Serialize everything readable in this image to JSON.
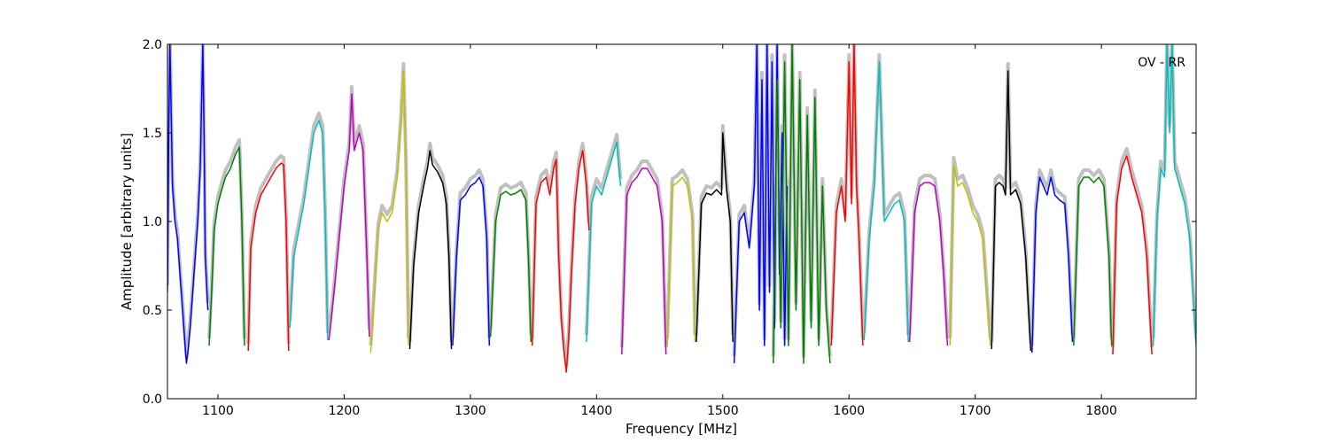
{
  "chart_data": {
    "type": "line",
    "annotation": "OV - RR",
    "xlabel": "Frequency [MHz]",
    "ylabel": "Amplitude [arbitrary units]",
    "xlim": [
      1060,
      1875
    ],
    "ylim": [
      0.0,
      2.0
    ],
    "x_ticks": [
      1100,
      1200,
      1300,
      1400,
      1500,
      1600,
      1700,
      1800
    ],
    "x_tick_labels": [
      "1100",
      "1200",
      "1300",
      "1400",
      "1500",
      "1600",
      "1700",
      "1800"
    ],
    "y_ticks": [
      0.0,
      0.5,
      1.0,
      1.5,
      2.0
    ],
    "y_tick_labels": [
      "0.0",
      "0.5",
      "1.0",
      "1.5",
      "2.0"
    ],
    "grid": false,
    "background_color": "#c0c0c0",
    "series": [
      {
        "color": "#0000ff",
        "x": [
          1060,
          1061,
          1062,
          1064,
          1066,
          1068,
          1070,
          1072,
          1074,
          1075,
          1076,
          1078,
          1080,
          1082,
          1084,
          1086,
          1088,
          1089,
          1090,
          1092
        ],
        "y": [
          0.6,
          1.5,
          2.0,
          1.2,
          1.0,
          0.9,
          0.7,
          0.5,
          0.3,
          0.2,
          0.25,
          0.4,
          0.6,
          0.8,
          1.0,
          1.3,
          2.0,
          1.5,
          0.8,
          0.5
        ]
      },
      {
        "color": "#008000",
        "x": [
          1093,
          1095,
          1097,
          1100,
          1103,
          1106,
          1110,
          1114,
          1117,
          1119,
          1121
        ],
        "y": [
          0.3,
          0.6,
          0.95,
          1.1,
          1.18,
          1.25,
          1.3,
          1.38,
          1.42,
          1.0,
          0.3
        ]
      },
      {
        "color": "#ff0000",
        "x": [
          1124,
          1126,
          1130,
          1134,
          1138,
          1142,
          1146,
          1150,
          1152,
          1154,
          1156
        ],
        "y": [
          0.27,
          0.85,
          1.05,
          1.15,
          1.2,
          1.25,
          1.3,
          1.33,
          1.32,
          1.0,
          0.27
        ]
      },
      {
        "color": "#00bfbf",
        "x": [
          1157,
          1160,
          1164,
          1168,
          1172,
          1176,
          1180,
          1183,
          1185,
          1187
        ],
        "y": [
          0.4,
          0.8,
          0.95,
          1.1,
          1.3,
          1.5,
          1.57,
          1.5,
          1.0,
          0.33
        ]
      },
      {
        "color": "#bf00bf",
        "x": [
          1188,
          1192,
          1196,
          1200,
          1204,
          1206,
          1208,
          1212,
          1215,
          1218,
          1220
        ],
        "y": [
          0.33,
          0.6,
          0.9,
          1.2,
          1.4,
          1.72,
          1.4,
          1.5,
          1.4,
          0.8,
          0.35
        ]
      },
      {
        "color": "#bfbf00",
        "x": [
          1221,
          1224,
          1227,
          1230,
          1234,
          1238,
          1242,
          1245,
          1247,
          1249,
          1251
        ],
        "y": [
          0.26,
          0.6,
          0.95,
          1.05,
          1.0,
          1.05,
          1.25,
          1.55,
          1.85,
          1.3,
          0.3
        ]
      },
      {
        "color": "#000000",
        "x": [
          1252,
          1255,
          1259,
          1263,
          1266,
          1268,
          1270,
          1274,
          1278,
          1281,
          1283,
          1285
        ],
        "y": [
          0.28,
          0.75,
          1.05,
          1.2,
          1.3,
          1.4,
          1.32,
          1.28,
          1.22,
          1.1,
          0.8,
          0.28
        ]
      },
      {
        "color": "#0000ff",
        "x": [
          1286,
          1289,
          1292,
          1296,
          1300,
          1304,
          1307,
          1310,
          1313,
          1315
        ],
        "y": [
          0.3,
          0.8,
          1.12,
          1.15,
          1.2,
          1.22,
          1.25,
          1.2,
          0.9,
          0.3
        ]
      },
      {
        "color": "#008000",
        "x": [
          1316,
          1320,
          1324,
          1328,
          1332,
          1336,
          1340,
          1344,
          1346,
          1348
        ],
        "y": [
          0.35,
          1.0,
          1.15,
          1.17,
          1.15,
          1.16,
          1.18,
          1.12,
          0.8,
          0.32
        ]
      },
      {
        "color": "#ff0000",
        "x": [
          1349,
          1352,
          1356,
          1360,
          1363,
          1366,
          1368,
          1370,
          1372,
          1374,
          1376,
          1378,
          1380,
          1383,
          1386,
          1389,
          1392,
          1394
        ],
        "y": [
          0.3,
          1.1,
          1.22,
          1.25,
          1.15,
          1.3,
          1.35,
          0.8,
          0.45,
          0.28,
          0.15,
          0.35,
          0.7,
          1.1,
          1.3,
          1.4,
          1.2,
          0.95
        ]
      },
      {
        "color": "#00bfbf",
        "x": [
          1392,
          1396,
          1400,
          1404,
          1408,
          1412,
          1416,
          1419
        ],
        "y": [
          0.32,
          1.1,
          1.2,
          1.15,
          1.25,
          1.35,
          1.45,
          1.2
        ]
      },
      {
        "color": "#bf00bf",
        "x": [
          1420,
          1424,
          1428,
          1432,
          1436,
          1440,
          1444,
          1448,
          1452,
          1455
        ],
        "y": [
          0.25,
          1.15,
          1.22,
          1.25,
          1.3,
          1.3,
          1.25,
          1.2,
          1.0,
          0.25
        ]
      },
      {
        "color": "#bfbf00",
        "x": [
          1456,
          1460,
          1464,
          1468,
          1472,
          1476,
          1478
        ],
        "y": [
          0.3,
          1.2,
          1.22,
          1.25,
          1.2,
          1.0,
          0.32
        ]
      },
      {
        "color": "#000000",
        "x": [
          1479,
          1483,
          1487,
          1491,
          1495,
          1499,
          1500,
          1503,
          1506,
          1508
        ],
        "y": [
          0.32,
          1.1,
          1.16,
          1.15,
          1.18,
          1.15,
          1.5,
          1.18,
          1.0,
          0.32
        ]
      },
      {
        "color": "#0000ff",
        "x": [
          1509,
          1513,
          1517,
          1521,
          1525,
          1527,
          1529,
          1531,
          1533,
          1535,
          1537,
          1539,
          1541,
          1543,
          1545,
          1547,
          1549,
          1551
        ],
        "y": [
          0.2,
          1.0,
          1.05,
          0.85,
          1.2,
          2.0,
          0.5,
          1.8,
          0.3,
          2.0,
          0.6,
          1.9,
          0.4,
          2.0,
          0.7,
          1.5,
          0.3,
          1.2
        ]
      },
      {
        "color": "#008000",
        "x": [
          1540,
          1543,
          1546,
          1549,
          1552,
          1555,
          1558,
          1561,
          1564,
          1567,
          1570,
          1573,
          1576,
          1579,
          1582,
          1585
        ],
        "y": [
          0.2,
          1.8,
          0.4,
          1.9,
          0.3,
          2.0,
          0.5,
          1.8,
          0.2,
          1.6,
          0.4,
          1.7,
          0.3,
          1.2,
          0.5,
          0.2
        ]
      },
      {
        "color": "#ff0000",
        "x": [
          1586,
          1590,
          1594,
          1597,
          1600,
          1602,
          1604,
          1606,
          1608,
          1611
        ],
        "y": [
          0.3,
          1.05,
          1.2,
          1.0,
          1.9,
          1.1,
          2.0,
          1.2,
          0.9,
          0.3
        ]
      },
      {
        "color": "#00bfbf",
        "x": [
          1612,
          1616,
          1620,
          1624,
          1628,
          1632,
          1636,
          1640,
          1644,
          1647
        ],
        "y": [
          0.33,
          0.9,
          1.2,
          1.9,
          1.0,
          1.05,
          1.1,
          1.12,
          1.0,
          0.32
        ]
      },
      {
        "color": "#bf00bf",
        "x": [
          1648,
          1652,
          1656,
          1660,
          1664,
          1668,
          1672,
          1675,
          1678
        ],
        "y": [
          0.32,
          1.05,
          1.2,
          1.22,
          1.22,
          1.2,
          1.0,
          0.7,
          0.3
        ]
      },
      {
        "color": "#bfbf00",
        "x": [
          1680,
          1683,
          1686,
          1690,
          1694,
          1698,
          1702,
          1706,
          1709,
          1712
        ],
        "y": [
          0.3,
          1.32,
          1.2,
          1.22,
          1.15,
          1.05,
          1.0,
          0.9,
          0.6,
          0.3
        ]
      },
      {
        "color": "#000000",
        "x": [
          1713,
          1716,
          1719,
          1722,
          1724,
          1726,
          1728,
          1732,
          1736,
          1740,
          1744
        ],
        "y": [
          0.28,
          1.2,
          1.22,
          1.2,
          1.15,
          1.85,
          1.15,
          1.18,
          1.1,
          0.8,
          0.27
        ]
      },
      {
        "color": "#0000ff",
        "x": [
          1745,
          1748,
          1751,
          1754,
          1757,
          1760,
          1763,
          1767,
          1771,
          1774,
          1777
        ],
        "y": [
          0.26,
          1.05,
          1.25,
          1.2,
          1.15,
          1.25,
          1.15,
          1.12,
          1.1,
          0.8,
          0.32
        ]
      },
      {
        "color": "#008000",
        "x": [
          1778,
          1782,
          1786,
          1790,
          1794,
          1798,
          1802,
          1806,
          1808
        ],
        "y": [
          0.3,
          1.2,
          1.25,
          1.25,
          1.22,
          1.25,
          1.2,
          0.8,
          0.3
        ]
      },
      {
        "color": "#ff0000",
        "x": [
          1809,
          1812,
          1816,
          1820,
          1824,
          1828,
          1832,
          1836,
          1840
        ],
        "y": [
          0.25,
          1.1,
          1.3,
          1.37,
          1.25,
          1.15,
          1.05,
          0.8,
          0.25
        ]
      },
      {
        "color": "#00bfbf",
        "x": [
          1841,
          1844,
          1847,
          1850,
          1852,
          1854,
          1856,
          1858,
          1862,
          1866,
          1870,
          1875
        ],
        "y": [
          0.3,
          1.0,
          1.3,
          1.25,
          2.0,
          1.5,
          2.0,
          1.3,
          1.2,
          1.1,
          0.9,
          0.3
        ]
      }
    ]
  }
}
